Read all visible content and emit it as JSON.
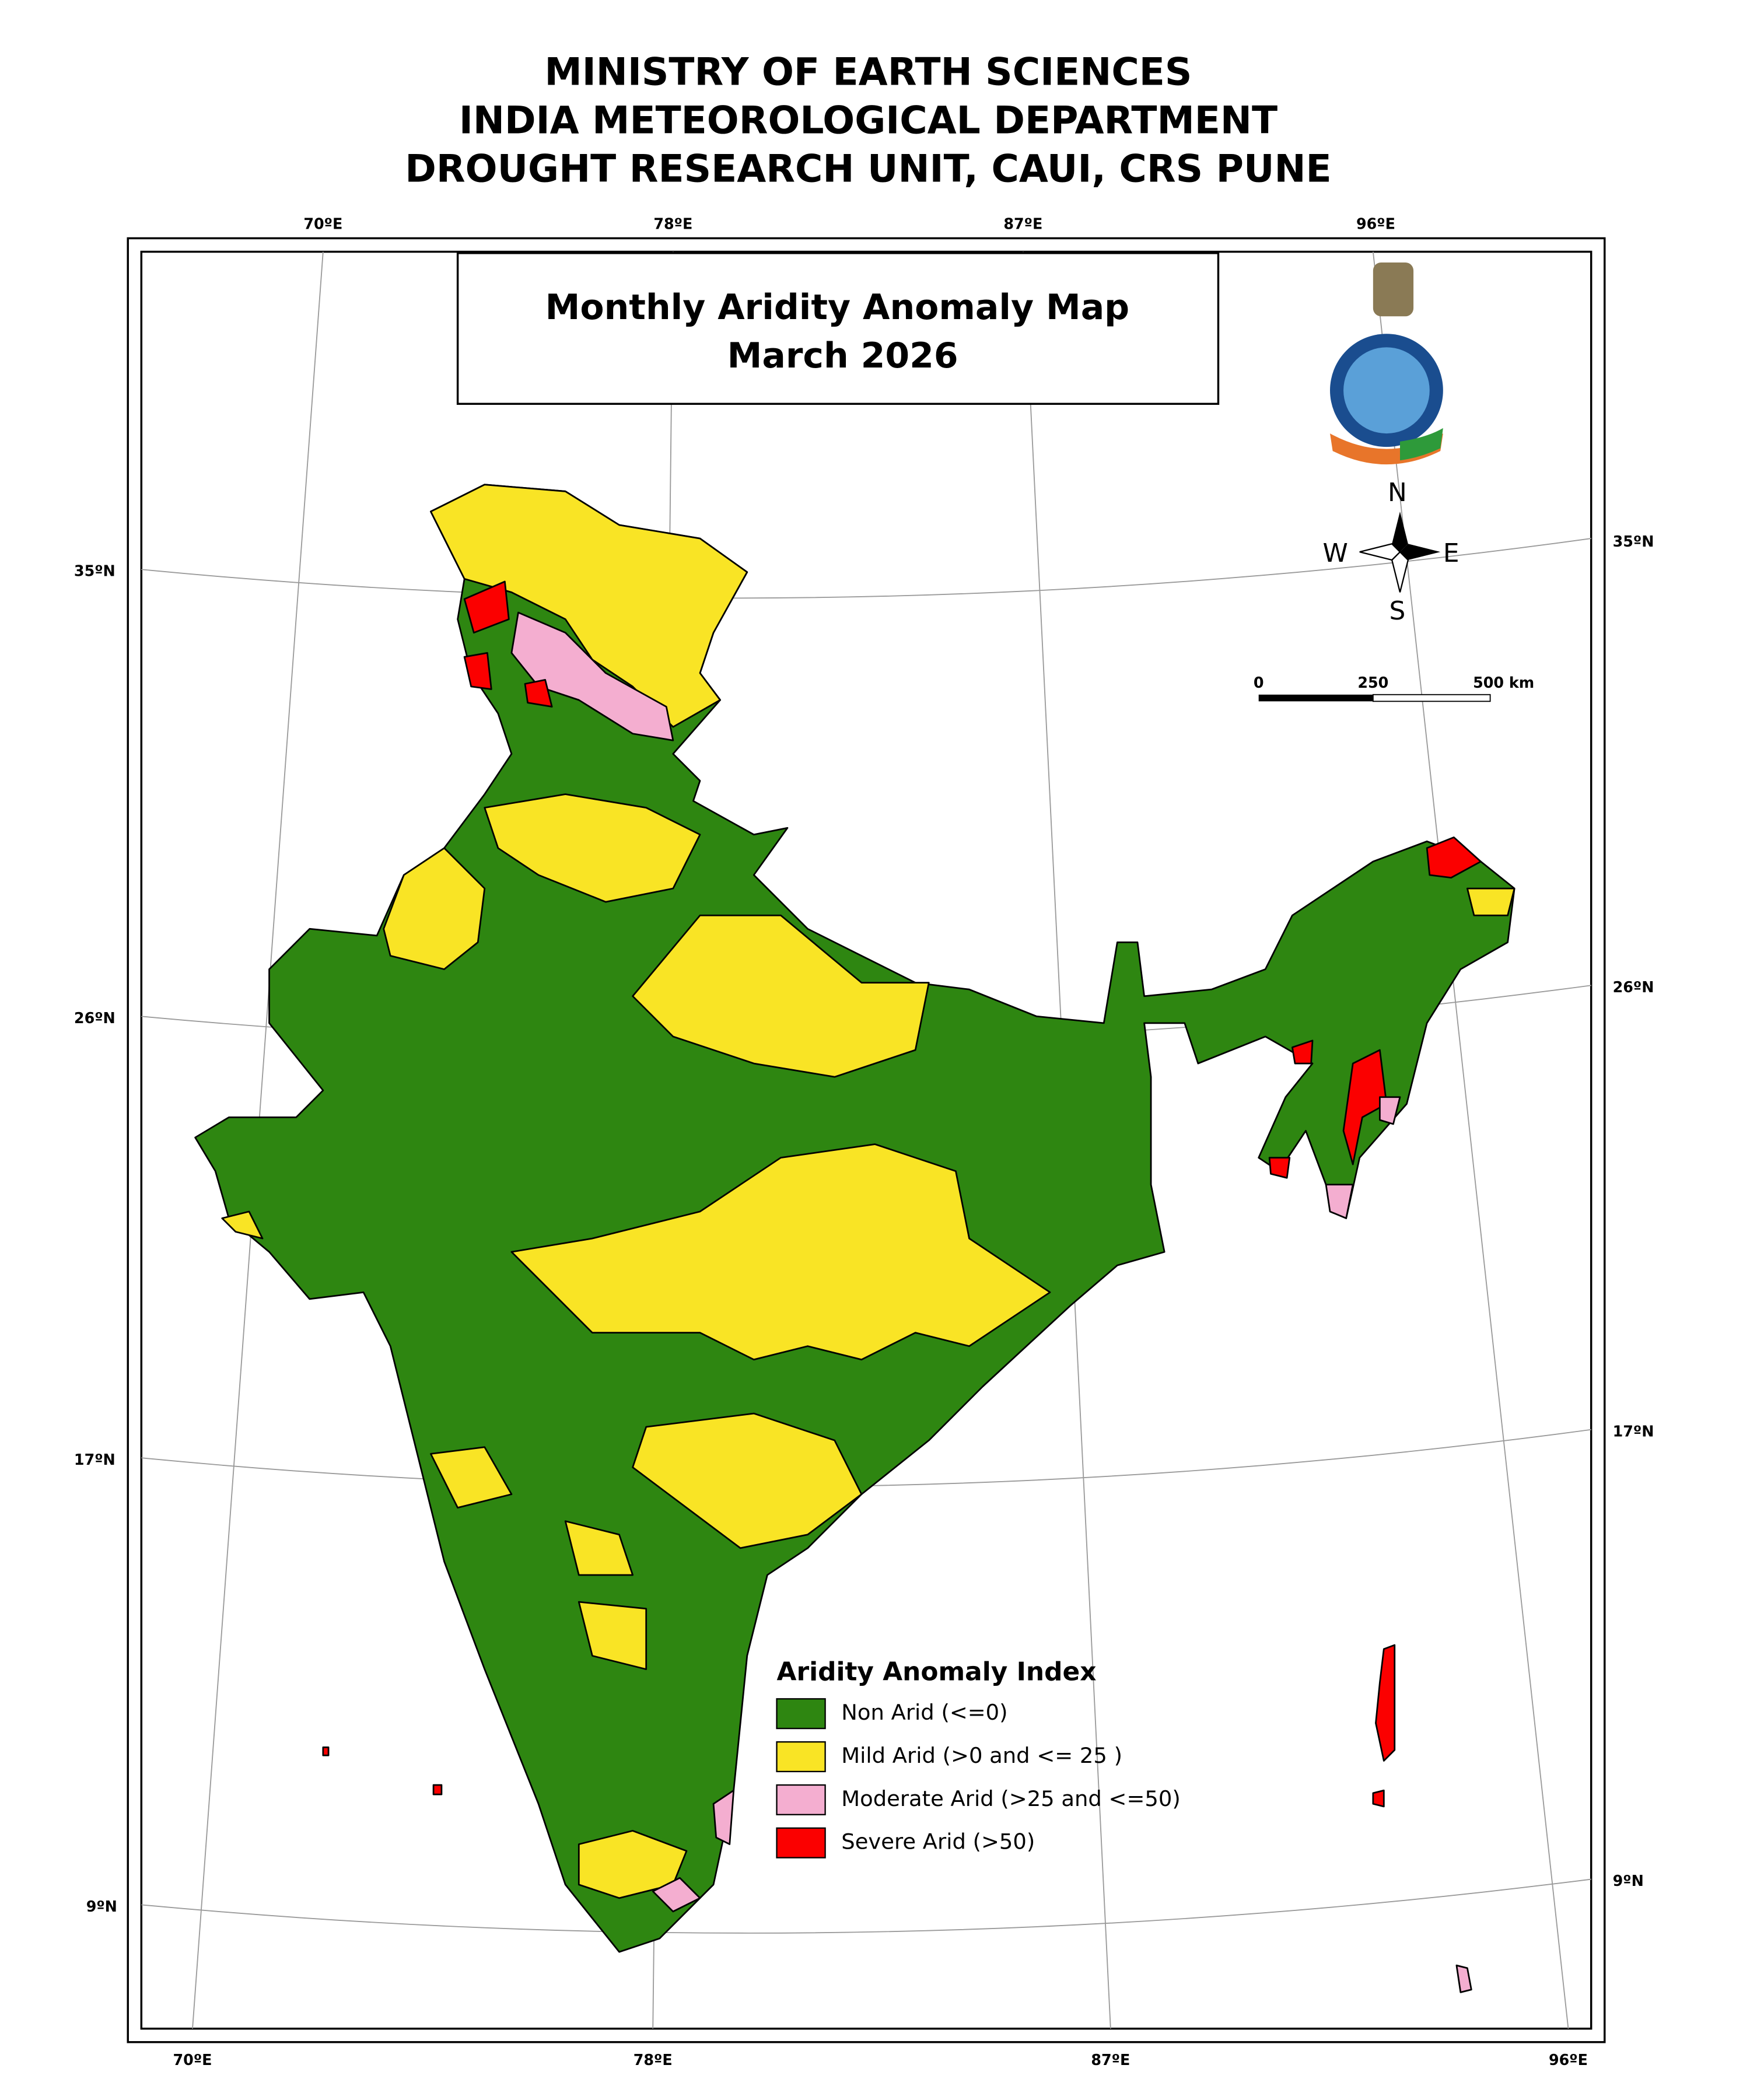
{
  "header": {
    "lines": [
      "MINISTRY OF EARTH SCIENCES",
      "INDIA METEOROLOGICAL DEPARTMENT",
      "DROUGHT RESEARCH UNIT, CAUI, CRS PUNE"
    ]
  },
  "map": {
    "title_lines": [
      "Monthly Aridity Anomaly Map",
      "March  2026"
    ],
    "longitude_labels": [
      "70ºE",
      "78ºE",
      "87ºE",
      "96ºE"
    ],
    "latitude_labels": [
      "35ºN",
      "26ºN",
      "17ºN",
      "9ºN"
    ],
    "compass": {
      "north": "N",
      "south": "S",
      "east": "E",
      "west": "W"
    },
    "scale_bar": [
      "0",
      "250",
      "500 km"
    ]
  },
  "legend": {
    "title": "Aridity Anomaly Index",
    "items": [
      {
        "label": "Non Arid (<=0)",
        "color": "#2e8611"
      },
      {
        "label": "Mild Arid (>0 and <= 25 )",
        "color": "#f9e425"
      },
      {
        "label": "Moderate Arid (>25 and <=50)",
        "color": "#f4aed0"
      },
      {
        "label": "Severe Arid (>50)",
        "color": "#fb0000"
      }
    ]
  }
}
